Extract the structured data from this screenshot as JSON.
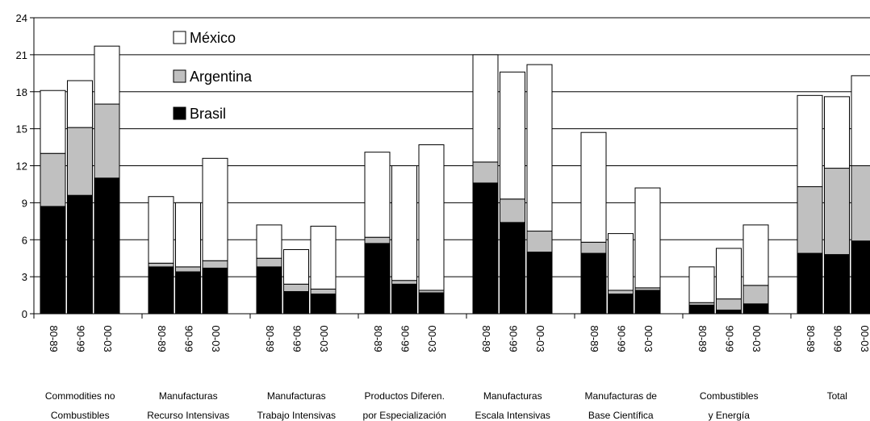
{
  "chart_data": {
    "type": "bar",
    "stacked": true,
    "ylim": [
      0,
      24
    ],
    "yticks": [
      "0",
      "3",
      "6",
      "9",
      "12",
      "15",
      "18",
      "21",
      "24"
    ],
    "grid": true,
    "legend_position": "top-left",
    "legend": [
      {
        "name": "México",
        "color": "#ffffff"
      },
      {
        "name": "Argentina",
        "color": "#c0c0c0"
      },
      {
        "name": "Brasil",
        "color": "#000000"
      }
    ],
    "groups": [
      {
        "label": [
          "Commodities no",
          "Combustibles"
        ],
        "periods": [
          "80-89",
          "90-99",
          "00-03"
        ],
        "Brasil": [
          8.7,
          9.6,
          11.0
        ],
        "Argentina": [
          4.3,
          5.5,
          6.0
        ],
        "Mexico": [
          5.1,
          3.8,
          4.7
        ]
      },
      {
        "label": [
          "Manufacturas",
          "Recurso Intensivas"
        ],
        "periods": [
          "80-89",
          "90-99",
          "00-03"
        ],
        "Brasil": [
          3.8,
          3.4,
          3.7
        ],
        "Argentina": [
          0.3,
          0.4,
          0.6
        ],
        "Mexico": [
          5.4,
          5.2,
          8.3
        ]
      },
      {
        "label": [
          "Manufacturas",
          "Trabajo Intensivas"
        ],
        "periods": [
          "80-89",
          "90-99",
          "00-03"
        ],
        "Brasil": [
          3.8,
          1.8,
          1.6
        ],
        "Argentina": [
          0.7,
          0.6,
          0.4
        ],
        "Mexico": [
          2.7,
          2.8,
          5.1
        ]
      },
      {
        "label": [
          "Productos Diferen.",
          "por  Especialización"
        ],
        "periods": [
          "80-89",
          "90-99",
          "00-03"
        ],
        "Brasil": [
          5.7,
          2.4,
          1.7
        ],
        "Argentina": [
          0.5,
          0.3,
          0.2
        ],
        "Mexico": [
          6.9,
          9.3,
          11.8
        ]
      },
      {
        "label": [
          "Manufacturas",
          "Escala Intensivas"
        ],
        "periods": [
          "80-89",
          "90-99",
          "00-03"
        ],
        "Brasil": [
          10.6,
          7.4,
          5.0
        ],
        "Argentina": [
          1.7,
          1.9,
          1.7
        ],
        "Mexico": [
          8.7,
          10.3,
          13.5
        ]
      },
      {
        "label": [
          "Manufacturas de",
          "Base Científica"
        ],
        "periods": [
          "80-89",
          "90-99",
          "00-03"
        ],
        "Brasil": [
          4.9,
          1.6,
          1.9
        ],
        "Argentina": [
          0.9,
          0.3,
          0.2
        ],
        "Mexico": [
          8.9,
          4.6,
          8.1
        ]
      },
      {
        "label": [
          "Combustibles",
          "y Energía"
        ],
        "periods": [
          "80-89",
          "90-99",
          "00-03"
        ],
        "Brasil": [
          0.7,
          0.3,
          0.8
        ],
        "Argentina": [
          0.2,
          0.9,
          1.5
        ],
        "Mexico": [
          2.9,
          4.1,
          4.9
        ]
      },
      {
        "label": [
          "Total",
          ""
        ],
        "periods": [
          "80-89",
          "90-99",
          "00-03"
        ],
        "Brasil": [
          4.9,
          4.8,
          5.9
        ],
        "Argentina": [
          5.4,
          7.0,
          6.1
        ],
        "Mexico": [
          7.4,
          5.8,
          7.3
        ]
      }
    ]
  }
}
